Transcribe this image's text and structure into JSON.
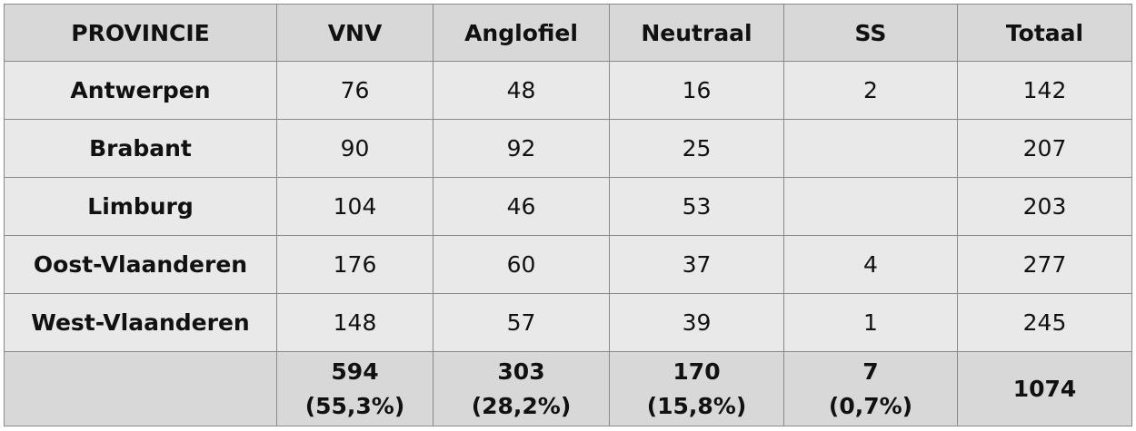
{
  "table": {
    "header": [
      "PROVINCIE",
      "VNV",
      "Anglofiel",
      "Neutraal",
      "SS",
      "Totaal"
    ],
    "rows": [
      [
        "Antwerpen",
        76,
        48,
        16,
        2,
        142
      ],
      [
        "Brabant",
        90,
        92,
        25,
        null,
        207
      ],
      [
        "Limburg",
        104,
        46,
        53,
        null,
        203
      ],
      [
        "Oost-Vlaanderen",
        176,
        60,
        37,
        4,
        277
      ],
      [
        "West-Vlaanderen",
        148,
        57,
        39,
        1,
        245
      ]
    ],
    "totals": [
      594,
      303,
      170,
      7,
      1074
    ],
    "shares": [
      "(55,3%)",
      "(28,2%)",
      "(15,8%)",
      "(0,7%)"
    ]
  }
}
